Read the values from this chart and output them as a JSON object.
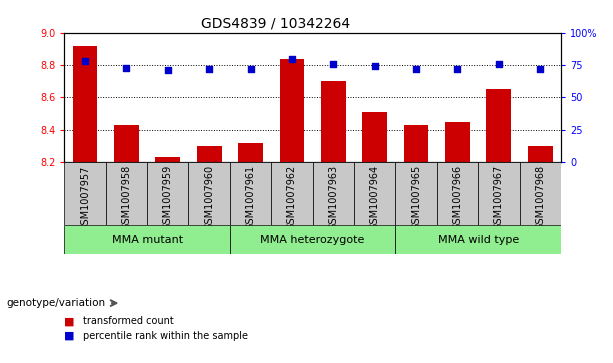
{
  "title": "GDS4839 / 10342264",
  "samples": [
    "GSM1007957",
    "GSM1007958",
    "GSM1007959",
    "GSM1007960",
    "GSM1007961",
    "GSM1007962",
    "GSM1007963",
    "GSM1007964",
    "GSM1007965",
    "GSM1007966",
    "GSM1007967",
    "GSM1007968"
  ],
  "bar_values": [
    8.92,
    8.43,
    8.23,
    8.3,
    8.32,
    8.84,
    8.7,
    8.51,
    8.43,
    8.45,
    8.65,
    8.3
  ],
  "scatter_values": [
    78,
    73,
    71,
    72,
    72,
    80,
    76,
    74,
    72,
    72,
    76,
    72
  ],
  "ylim_left": [
    8.2,
    9.0
  ],
  "ylim_right": [
    0,
    100
  ],
  "yticks_left": [
    8.2,
    8.4,
    8.6,
    8.8,
    9.0
  ],
  "yticks_right": [
    0,
    25,
    50,
    75,
    100
  ],
  "ytick_labels_right": [
    "0",
    "25",
    "50",
    "75",
    "100%"
  ],
  "bar_color": "#cc0000",
  "scatter_color": "#0000cc",
  "bar_bottom": 8.2,
  "xticklabel_bg": "#c8c8c8",
  "green_color": "#90ee90",
  "group_spans": [
    {
      "start": 0,
      "end": 3,
      "label": "MMA mutant"
    },
    {
      "start": 4,
      "end": 7,
      "label": "MMA heterozygote"
    },
    {
      "start": 8,
      "end": 11,
      "label": "MMA wild type"
    }
  ],
  "genotype_label": "genotype/variation",
  "legend_bar_label": "transformed count",
  "legend_scatter_label": "percentile rank within the sample",
  "title_fontsize": 10,
  "tick_fontsize": 7,
  "group_fontsize": 8
}
